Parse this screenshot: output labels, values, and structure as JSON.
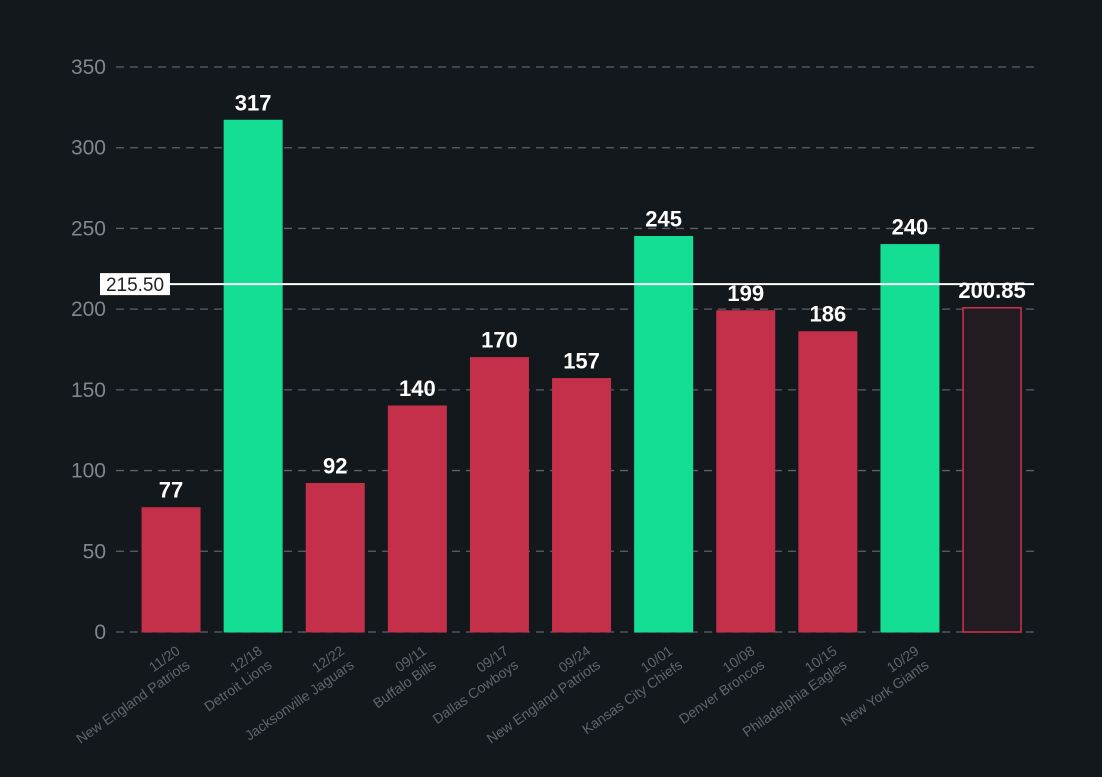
{
  "chart_data": {
    "type": "bar",
    "title": "",
    "xlabel": "",
    "ylabel": "",
    "ylim": [
      0,
      350
    ],
    "yticks": [
      0,
      50,
      100,
      150,
      200,
      250,
      300,
      350
    ],
    "grid": true,
    "categories": [
      {
        "date": "11/20",
        "team": "New England Patriots"
      },
      {
        "date": "12/18",
        "team": "Detroit Lions"
      },
      {
        "date": "12/22",
        "team": "Jacksonville Jaguars"
      },
      {
        "date": "09/11",
        "team": "Buffalo Bills"
      },
      {
        "date": "09/17",
        "team": "Dallas Cowboys"
      },
      {
        "date": "09/24",
        "team": "New England Patriots"
      },
      {
        "date": "10/01",
        "team": "Kansas City Chiefs"
      },
      {
        "date": "10/08",
        "team": "Denver Broncos"
      },
      {
        "date": "10/15",
        "team": "Philadelphia Eagles"
      },
      {
        "date": "10/29",
        "team": "New York Giants"
      }
    ],
    "values": [
      77,
      317,
      92,
      140,
      170,
      157,
      245,
      199,
      186,
      240
    ],
    "projection": {
      "value": 200.85,
      "label": "200.85"
    },
    "reference_line": {
      "value": 215.5,
      "label": "215.50"
    },
    "colors": {
      "over": "#14dd94",
      "under": "#c4304a",
      "projection_fill": "#221c22",
      "projection_stroke": "#c4304a",
      "reference_line": "#ffffff",
      "grid": "#5b6167",
      "tick_text": "#80868c",
      "category_text": "#5f656b",
      "value_text": "#ffffff",
      "background": "#13181c"
    }
  }
}
